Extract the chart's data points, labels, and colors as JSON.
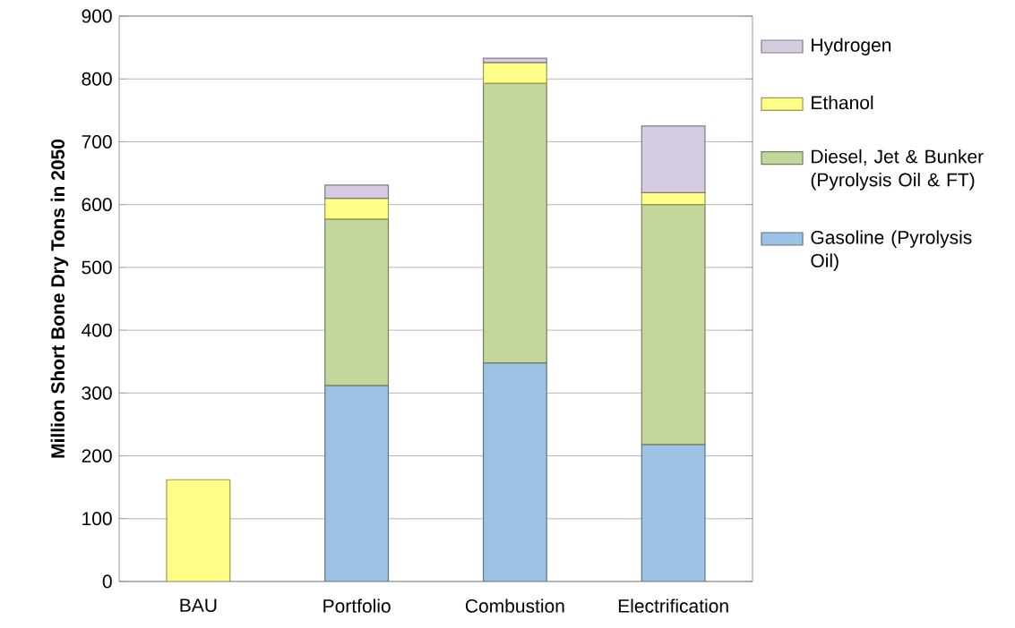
{
  "chart_data": {
    "type": "bar",
    "stacked": true,
    "ylabel": "Million Short Bone Dry Tons in 2050",
    "categories": [
      "BAU",
      "Portfolio",
      "Combustion",
      "Electrification"
    ],
    "series": [
      {
        "name": "Gasoline (Pyrolysis Oil)",
        "color": "#9cc2e5",
        "values": [
          null,
          312,
          348,
          218
        ]
      },
      {
        "name": "Diesel, Jet & Bunker (Pyrolysis Oil & FT)",
        "color": "#c3d69b",
        "values": [
          null,
          265,
          445,
          382
        ]
      },
      {
        "name": "Ethanol",
        "color": "#ffff88",
        "values": [
          162,
          33,
          33,
          19
        ]
      },
      {
        "name": "Hydrogen",
        "color": "#d5cce2",
        "values": [
          null,
          21,
          7,
          106
        ]
      }
    ],
    "ylim": [
      0,
      900
    ],
    "yticks": [
      0,
      100,
      200,
      300,
      400,
      500,
      600,
      700,
      800,
      900
    ],
    "grid": "y",
    "legend": "right"
  }
}
